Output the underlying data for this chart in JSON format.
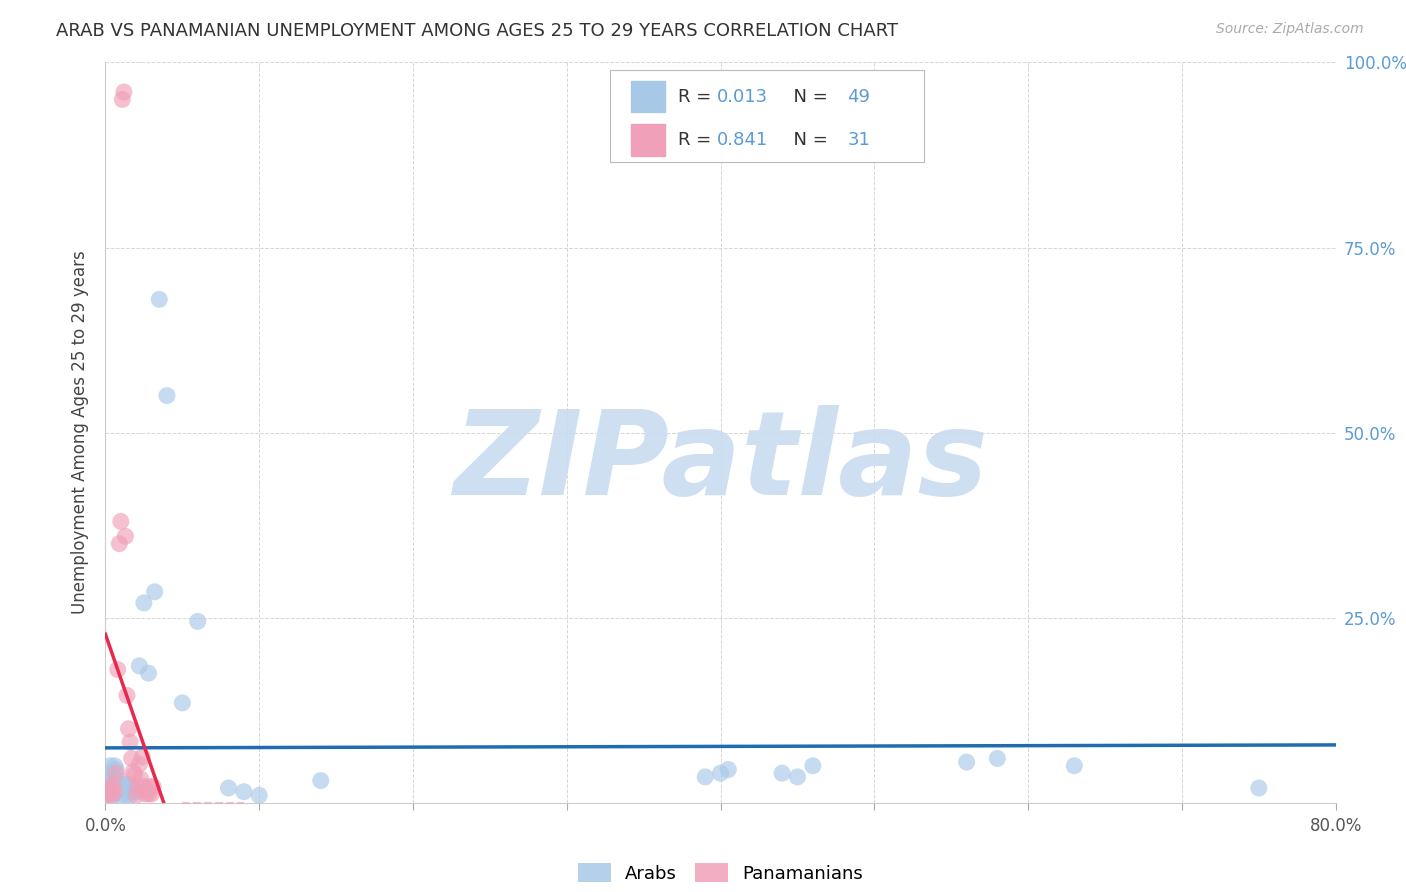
{
  "title": "ARAB VS PANAMANIAN UNEMPLOYMENT AMONG AGES 25 TO 29 YEARS CORRELATION CHART",
  "source": "Source: ZipAtlas.com",
  "ylabel": "Unemployment Among Ages 25 to 29 years",
  "xlim": [
    0.0,
    0.8
  ],
  "ylim": [
    0.0,
    1.0
  ],
  "arab_color": "#A8C8E8",
  "pana_color": "#F0A0B8",
  "arab_R_text": "0.013",
  "arab_N_text": "49",
  "pana_R_text": "0.841",
  "pana_N_text": "31",
  "legend_arab_label": "Arabs",
  "legend_pana_label": "Panamanians",
  "watermark": "ZIPatlas",
  "watermark_color": "#C8DCF0",
  "legend_text_color": "#5B9BD5",
  "arab_line_color": "#1F6CB0",
  "pana_line_color": "#E8294C",
  "background_color": "#FFFFFF",
  "grid_color": "#CCCCCC",
  "arab_scatter_x": [
    0.001,
    0.001,
    0.002,
    0.002,
    0.003,
    0.003,
    0.004,
    0.004,
    0.005,
    0.005,
    0.006,
    0.006,
    0.007,
    0.007,
    0.008,
    0.009,
    0.01,
    0.01,
    0.011,
    0.012,
    0.013,
    0.014,
    0.015,
    0.016,
    0.017,
    0.018,
    0.02,
    0.022,
    0.025,
    0.028,
    0.032,
    0.035,
    0.04,
    0.05,
    0.06,
    0.08,
    0.09,
    0.1,
    0.14,
    0.39,
    0.4,
    0.405,
    0.44,
    0.45,
    0.46,
    0.56,
    0.58,
    0.63,
    0.75
  ],
  "arab_scatter_y": [
    0.01,
    0.03,
    0.015,
    0.04,
    0.02,
    0.05,
    0.015,
    0.035,
    0.01,
    0.025,
    0.03,
    0.05,
    0.015,
    0.045,
    0.02,
    0.025,
    0.01,
    0.03,
    0.02,
    0.025,
    0.01,
    0.02,
    0.025,
    0.01,
    0.015,
    0.02,
    0.015,
    0.185,
    0.27,
    0.175,
    0.285,
    0.68,
    0.55,
    0.135,
    0.245,
    0.02,
    0.015,
    0.01,
    0.03,
    0.035,
    0.04,
    0.045,
    0.04,
    0.035,
    0.05,
    0.055,
    0.06,
    0.05,
    0.02
  ],
  "pana_scatter_x": [
    0.001,
    0.002,
    0.003,
    0.004,
    0.005,
    0.006,
    0.007,
    0.008,
    0.009,
    0.01,
    0.011,
    0.012,
    0.013,
    0.014,
    0.015,
    0.016,
    0.017,
    0.018,
    0.019,
    0.02,
    0.021,
    0.022,
    0.023,
    0.024,
    0.025,
    0.026,
    0.027,
    0.028,
    0.029,
    0.03,
    0.031
  ],
  "pana_scatter_y": [
    0.01,
    0.015,
    0.02,
    0.01,
    0.025,
    0.015,
    0.04,
    0.18,
    0.35,
    0.38,
    0.95,
    0.96,
    0.36,
    0.145,
    0.1,
    0.082,
    0.06,
    0.042,
    0.038,
    0.01,
    0.022,
    0.052,
    0.032,
    0.062,
    0.022,
    0.012,
    0.017,
    0.012,
    0.022,
    0.012,
    0.022
  ]
}
